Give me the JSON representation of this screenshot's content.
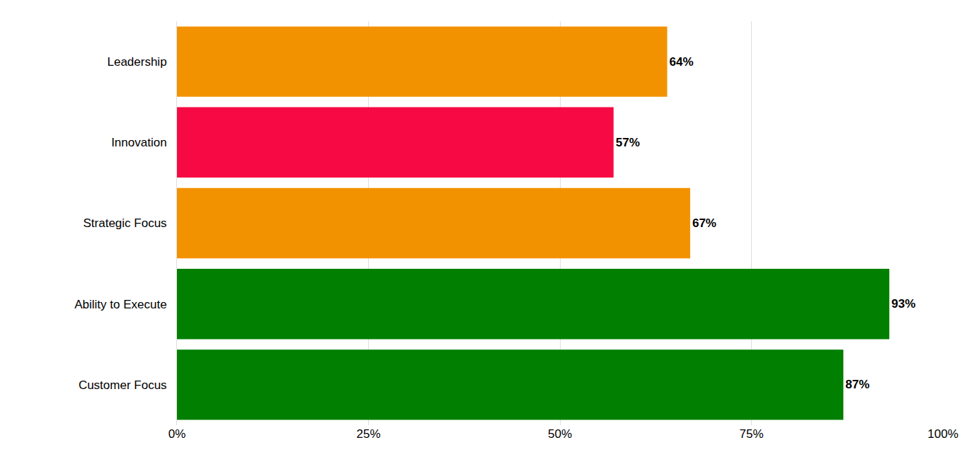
{
  "chart_data": {
    "type": "bar",
    "orientation": "horizontal",
    "categories": [
      "Leadership",
      "Innovation",
      "Strategic Focus",
      "Ability to Execute",
      "Customer Focus"
    ],
    "values": [
      64,
      57,
      67,
      93,
      87
    ],
    "value_labels": [
      "64%",
      "57%",
      "67%",
      "93%",
      "87%"
    ],
    "colors": [
      "#f39200",
      "#f70a43",
      "#f39200",
      "#007f00",
      "#007f00"
    ],
    "data_labels": true,
    "xlim": [
      0,
      100
    ],
    "xticks": [
      {
        "value": 0,
        "label": "0%"
      },
      {
        "value": 25,
        "label": "25%"
      },
      {
        "value": 50,
        "label": "50%"
      },
      {
        "value": 75,
        "label": "75%"
      },
      {
        "value": 100,
        "label": "100%"
      }
    ],
    "grid": true
  }
}
